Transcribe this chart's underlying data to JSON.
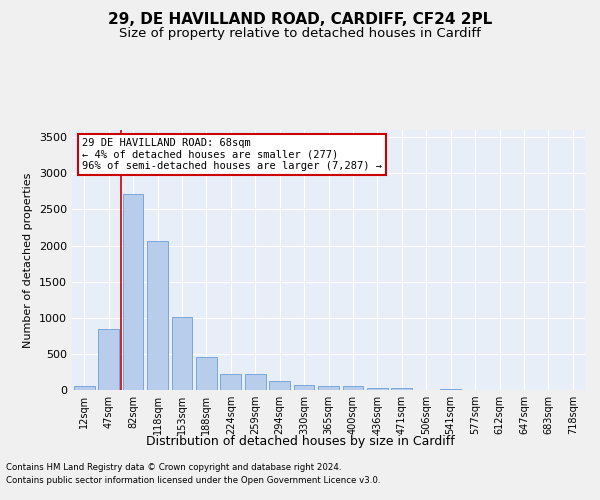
{
  "title_line1": "29, DE HAVILLAND ROAD, CARDIFF, CF24 2PL",
  "title_line2": "Size of property relative to detached houses in Cardiff",
  "xlabel": "Distribution of detached houses by size in Cardiff",
  "ylabel": "Number of detached properties",
  "categories": [
    "12sqm",
    "47sqm",
    "82sqm",
    "118sqm",
    "153sqm",
    "188sqm",
    "224sqm",
    "259sqm",
    "294sqm",
    "330sqm",
    "365sqm",
    "400sqm",
    "436sqm",
    "471sqm",
    "506sqm",
    "541sqm",
    "577sqm",
    "612sqm",
    "647sqm",
    "683sqm",
    "718sqm"
  ],
  "values": [
    60,
    850,
    2720,
    2060,
    1005,
    455,
    220,
    215,
    130,
    70,
    55,
    50,
    30,
    25,
    5,
    10,
    0,
    0,
    0,
    0,
    0
  ],
  "bar_color": "#b8cceb",
  "bar_edge_color": "#6a9fd8",
  "ylim": [
    0,
    3600
  ],
  "yticks": [
    0,
    500,
    1000,
    1500,
    2000,
    2500,
    3000,
    3500
  ],
  "property_line_x": 1.5,
  "annotation_text": "29 DE HAVILLAND ROAD: 68sqm\n← 4% of detached houses are smaller (277)\n96% of semi-detached houses are larger (7,287) →",
  "annotation_box_color": "#ffffff",
  "annotation_box_edge": "#cc0000",
  "line_color": "#cc0000",
  "footnote1": "Contains HM Land Registry data © Crown copyright and database right 2024.",
  "footnote2": "Contains public sector information licensed under the Open Government Licence v3.0.",
  "bg_color": "#e8eef8",
  "fig_bg_color": "#f0f0f0",
  "grid_color": "#ffffff",
  "title_fontsize": 11,
  "subtitle_fontsize": 9.5
}
